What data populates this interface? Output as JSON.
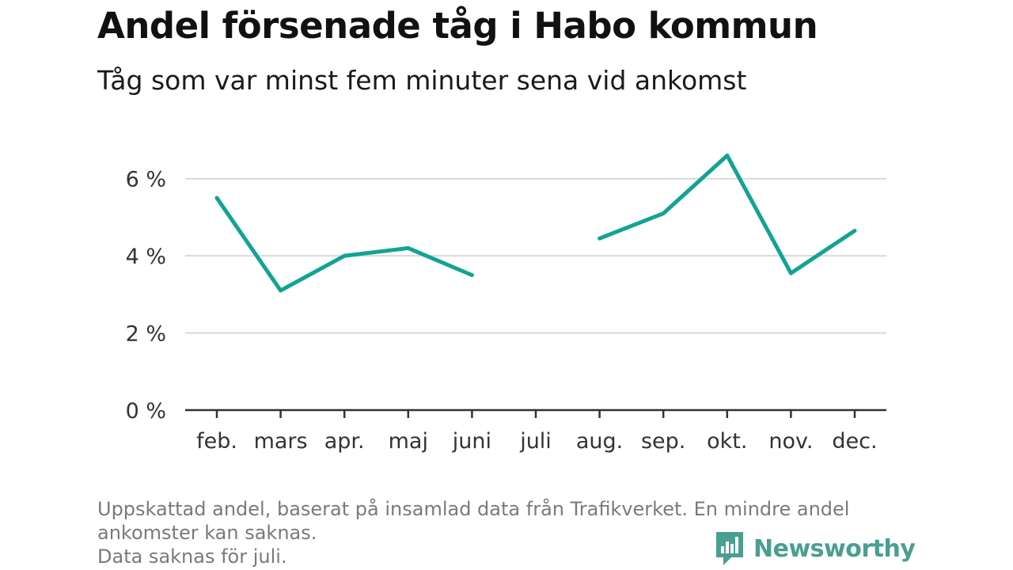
{
  "chart_data": {
    "type": "line",
    "title": "Andel försenade tåg i Habo kommun",
    "subtitle": "Tåg som var minst fem minuter sena vid ankomst",
    "categories": [
      "feb.",
      "mars",
      "apr.",
      "maj",
      "juni",
      "juli",
      "aug.",
      "sep.",
      "okt.",
      "nov.",
      "dec."
    ],
    "series": [
      {
        "values": [
          5.5,
          3.1,
          4.0,
          4.2,
          3.5,
          null,
          4.45,
          5.1,
          6.6,
          3.55,
          4.65
        ]
      }
    ],
    "ylim": [
      0,
      7
    ],
    "yticks": [
      0,
      2,
      4,
      6
    ],
    "ytick_labels": [
      "0 %",
      "2 %",
      "4 %",
      "6 %"
    ],
    "xlabel": "",
    "ylabel": "",
    "grid": true,
    "line_color": "#12a394",
    "grid_color": "#d9d9d9",
    "footnote": [
      "Uppskattad andel, baserat på insamlad data från Trafikverket. En mindre andel",
      "ankomster kan saknas.",
      "Data saknas för juli."
    ]
  },
  "brand": {
    "name": "Newsworthy",
    "color": "#4a9e92",
    "icon": "newsworthy-logo-icon"
  }
}
